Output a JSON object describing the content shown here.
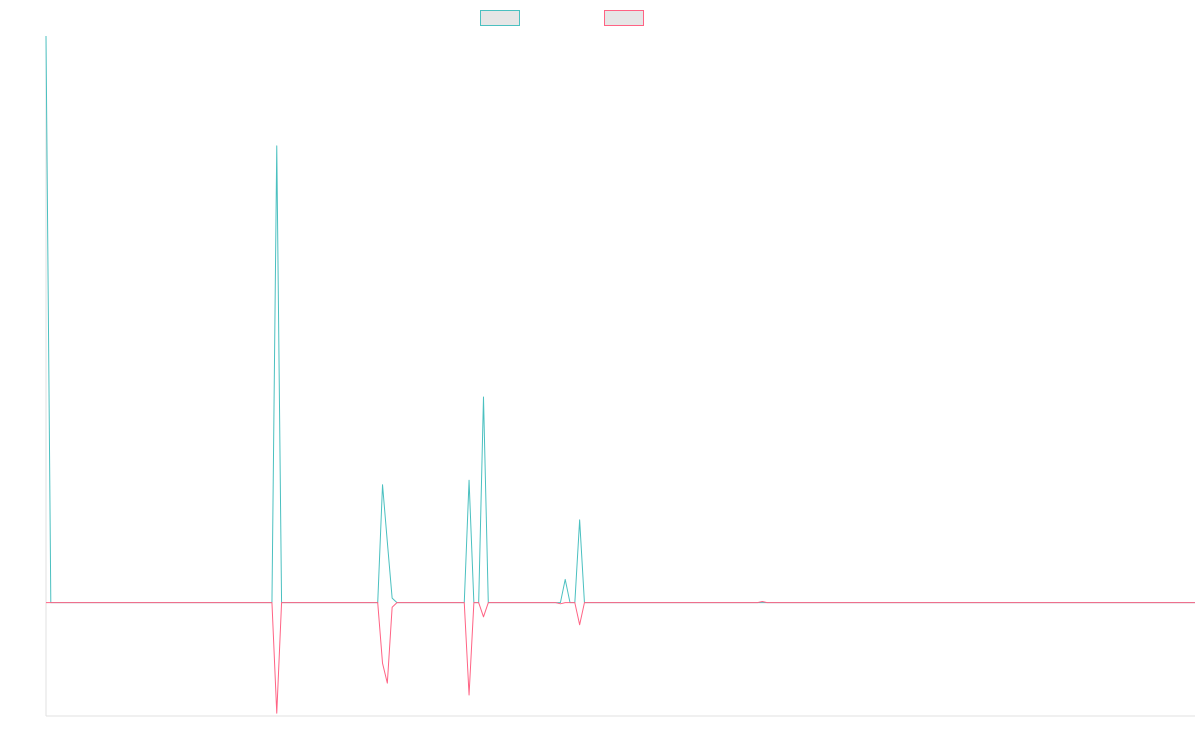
{
  "chart_data": {
    "type": "line",
    "title": "",
    "xlabel": "",
    "ylabel": "",
    "x_count": 240,
    "xlim": [
      0,
      239
    ],
    "ylim": [
      -0.2,
      1.0
    ],
    "grid": false,
    "legend": "top-center",
    "series": [
      {
        "color": "#4bc0c0",
        "label": "",
        "points": [
          [
            0,
            1.0
          ],
          [
            1,
            0.0
          ],
          [
            47,
            0.0
          ],
          [
            48,
            0.806
          ],
          [
            49,
            0.0
          ],
          [
            69,
            0.0
          ],
          [
            70,
            0.208
          ],
          [
            71,
            0.107
          ],
          [
            72,
            0.008
          ],
          [
            73,
            0.0
          ],
          [
            87,
            0.0
          ],
          [
            88,
            0.216
          ],
          [
            89,
            0.0
          ],
          [
            90,
            0.0
          ],
          [
            91,
            0.363
          ],
          [
            92,
            0.0
          ],
          [
            107,
            0.0
          ],
          [
            108,
            0.041
          ],
          [
            109,
            0.0
          ],
          [
            110,
            0.0
          ],
          [
            111,
            0.146
          ],
          [
            112,
            0.0
          ],
          [
            239,
            0.0
          ]
        ]
      },
      {
        "color": "#ff6384",
        "label": "",
        "points": [
          [
            0,
            0.0
          ],
          [
            47,
            0.0
          ],
          [
            48,
            -0.195
          ],
          [
            49,
            0.0
          ],
          [
            69,
            0.0
          ],
          [
            70,
            -0.107
          ],
          [
            71,
            -0.142
          ],
          [
            72,
            -0.008
          ],
          [
            73,
            0.0
          ],
          [
            87,
            0.0
          ],
          [
            88,
            -0.163
          ],
          [
            89,
            0.0
          ],
          [
            90,
            0.0
          ],
          [
            91,
            -0.025
          ],
          [
            92,
            0.0
          ],
          [
            106,
            0.0
          ],
          [
            107,
            -0.002
          ],
          [
            108,
            0.0
          ],
          [
            110,
            0.0
          ],
          [
            111,
            -0.039
          ],
          [
            112,
            0.0
          ],
          [
            148,
            0.0
          ],
          [
            149,
            0.002
          ],
          [
            150,
            0.0
          ],
          [
            239,
            0.0
          ]
        ]
      }
    ]
  },
  "legend": {
    "items": [
      {
        "label": "",
        "color": "#4bc0c0"
      },
      {
        "label": "",
        "color": "#ff6384"
      }
    ]
  }
}
